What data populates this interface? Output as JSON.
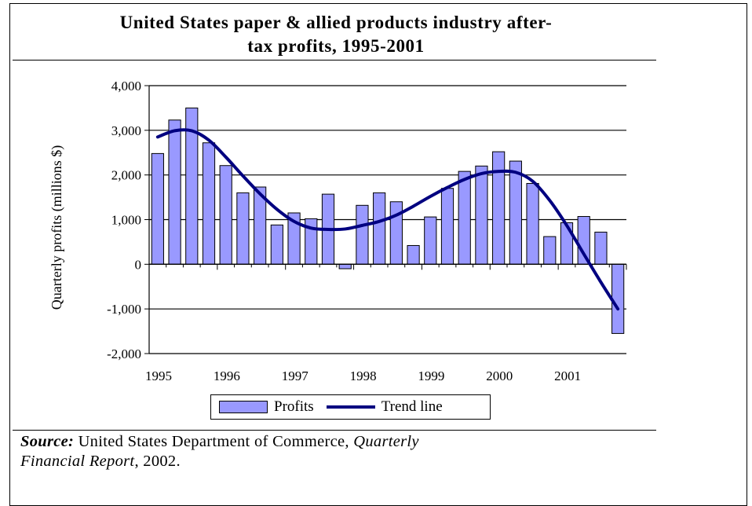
{
  "title": {
    "line1": "United States paper & allied products industry after-",
    "line2": "tax profits, 1995-2001"
  },
  "chart_data": {
    "type": "bar",
    "title": "United States paper & allied products industry after-tax profits, 1995-2001",
    "ylabel": "Quarterly profits (millions $)",
    "xlabel": "",
    "ylim": [
      -2000,
      4000
    ],
    "yticks": [
      4000,
      3000,
      2000,
      1000,
      0,
      -1000,
      -2000
    ],
    "ytick_labels": [
      "4,000",
      "3,000",
      "2,000",
      "1,000",
      "0",
      "-1,000",
      "-2,000"
    ],
    "xtick_labels": [
      "1995",
      "1996",
      "1997",
      "1998",
      "1999",
      "2000",
      "2001"
    ],
    "grid": true,
    "legend_position": "bottom-center",
    "categories": [
      "1995 Q1",
      "1995 Q2",
      "1995 Q3",
      "1995 Q4",
      "1996 Q1",
      "1996 Q2",
      "1996 Q3",
      "1996 Q4",
      "1997 Q1",
      "1997 Q2",
      "1997 Q3",
      "1997 Q4",
      "1998 Q1",
      "1998 Q2",
      "1998 Q3",
      "1998 Q4",
      "1999 Q1",
      "1999 Q2",
      "1999 Q3",
      "1999 Q4",
      "2000 Q1",
      "2000 Q2",
      "2000 Q3",
      "2000 Q4",
      "2001 Q1",
      "2001 Q2",
      "2001 Q3",
      "2001 Q4"
    ],
    "series": [
      {
        "name": "Profits",
        "kind": "bar",
        "color": "#9999ff",
        "values": [
          2480,
          3230,
          3500,
          2720,
          2210,
          1600,
          1730,
          880,
          1150,
          1020,
          1570,
          -100,
          1320,
          1600,
          1400,
          420,
          1060,
          1700,
          2080,
          2200,
          2520,
          2310,
          1810,
          620,
          930,
          1070,
          720,
          -1550
        ]
      },
      {
        "name": "Trend line",
        "kind": "line",
        "color": "#000080",
        "values": [
          2850,
          2990,
          2990,
          2780,
          2400,
          1980,
          1580,
          1230,
          960,
          810,
          780,
          790,
          870,
          960,
          1100,
          1300,
          1520,
          1720,
          1900,
          2030,
          2080,
          2060,
          1860,
          1430,
          870,
          230,
          -400,
          -1000
        ]
      }
    ]
  },
  "legend": {
    "profits_label": "Profits",
    "trend_label": "Trend line"
  },
  "source": {
    "label": "Source:",
    "text1": " United States Department of Commerce",
    "text1b": ", ",
    "ital1": "Quarterly",
    "ital2": "Financial Report",
    "text2": ", 2002."
  }
}
